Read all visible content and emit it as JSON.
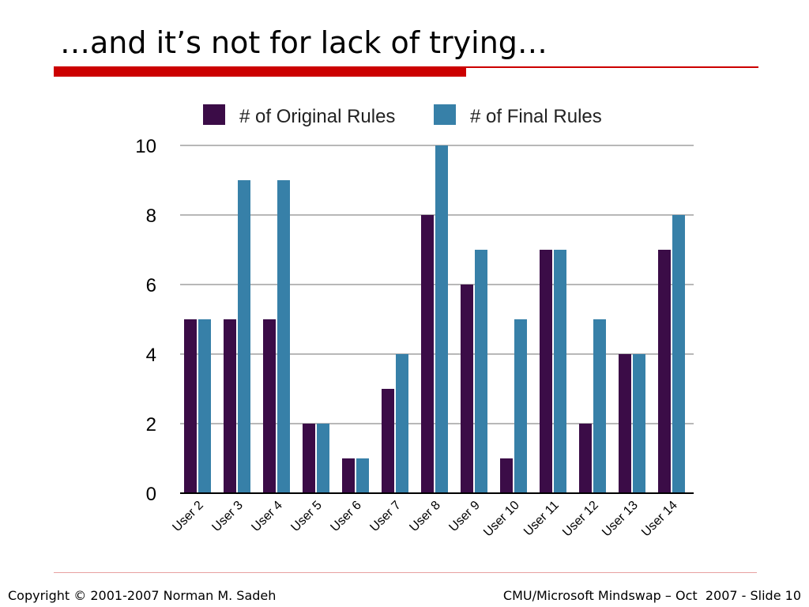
{
  "slide": {
    "title": "…and it’s not for lack of trying…"
  },
  "footer": {
    "left": "Copyright © 2001-2007 Norman M. Sadeh",
    "right": "CMU/Microsoft Mindswap – Oct  2007 - Slide 10"
  },
  "chart_data": {
    "type": "bar",
    "categories": [
      "User 2",
      "User 3",
      "User 4",
      "User 5",
      "User 6",
      "User 7",
      "User 8",
      "User 9",
      "User 10",
      "User 11",
      "User 12",
      "User 13",
      "User 14"
    ],
    "series": [
      {
        "name": "# of Original Rules",
        "color": "#3b0c47",
        "values": [
          5,
          5,
          5,
          2,
          1,
          3,
          8,
          6,
          1,
          7,
          2,
          4,
          7
        ]
      },
      {
        "name": "# of Final Rules",
        "color": "#3780a8",
        "values": [
          5,
          9,
          9,
          2,
          1,
          4,
          10,
          7,
          5,
          7,
          5,
          4,
          8
        ]
      }
    ],
    "yticks": [
      "0",
      "2",
      "4",
      "6",
      "8",
      "10"
    ],
    "ylim": [
      0,
      10
    ],
    "grid": true,
    "legend": "top"
  }
}
